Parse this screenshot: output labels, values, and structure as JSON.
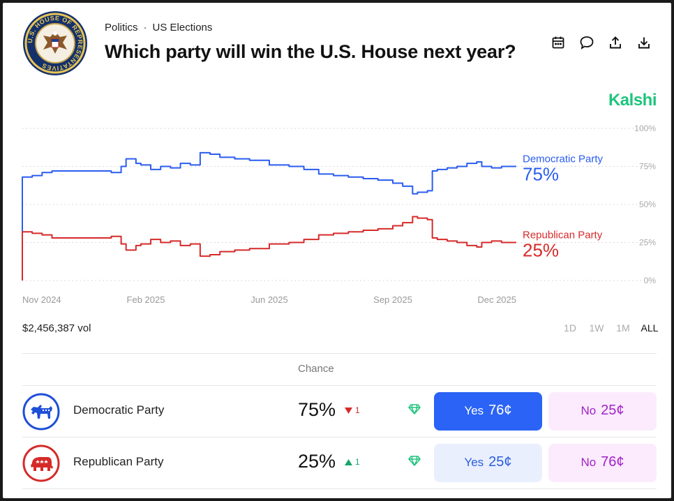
{
  "header": {
    "seal_text": "U.S. HOUSE OF REPRESENTATIVES",
    "breadcrumb": [
      "Politics",
      "US Elections"
    ],
    "title": "Which party will win the U.S. House next year?",
    "brand": "Kalshi"
  },
  "toolbar": [
    {
      "name": "calendar-icon"
    },
    {
      "name": "comment-icon"
    },
    {
      "name": "share-icon"
    },
    {
      "name": "download-icon"
    }
  ],
  "chart_data": {
    "type": "line",
    "x_ticks": [
      "Nov 2024",
      "Feb 2025",
      "Jun 2025",
      "Sep 2025",
      "Dec 2025"
    ],
    "y_ticks": [
      "100%",
      "75%",
      "50%",
      "25%",
      "0%"
    ],
    "ylim": [
      0,
      100
    ],
    "grid": true,
    "series": [
      {
        "name": "Democratic Party",
        "color": "#2a5cf0",
        "label": "75%",
        "t": [
          0,
          0.02,
          0.04,
          0.06,
          0.1,
          0.15,
          0.18,
          0.2,
          0.21,
          0.23,
          0.24,
          0.26,
          0.28,
          0.3,
          0.32,
          0.34,
          0.36,
          0.38,
          0.4,
          0.43,
          0.46,
          0.5,
          0.54,
          0.57,
          0.6,
          0.63,
          0.66,
          0.69,
          0.72,
          0.75,
          0.77,
          0.79,
          0.8,
          0.82,
          0.83,
          0.84,
          0.86,
          0.88,
          0.9,
          0.92,
          0.93,
          0.95,
          0.97,
          1.0
        ],
        "v": [
          68,
          69,
          71,
          72,
          72,
          72,
          71,
          75,
          80,
          77,
          76,
          73,
          75,
          74,
          77,
          76,
          84,
          83,
          81,
          80,
          79,
          76,
          75,
          73,
          70,
          69,
          68,
          67,
          66,
          64,
          62,
          57,
          58,
          59,
          72,
          73,
          74,
          75,
          77,
          78,
          75,
          74,
          75,
          75
        ]
      },
      {
        "name": "Republican Party",
        "color": "#d62a2a",
        "label": "25%",
        "t": [
          0,
          0.02,
          0.04,
          0.06,
          0.1,
          0.15,
          0.18,
          0.2,
          0.21,
          0.23,
          0.24,
          0.26,
          0.28,
          0.3,
          0.32,
          0.34,
          0.36,
          0.38,
          0.4,
          0.43,
          0.46,
          0.5,
          0.54,
          0.57,
          0.6,
          0.63,
          0.66,
          0.69,
          0.72,
          0.75,
          0.77,
          0.79,
          0.8,
          0.82,
          0.83,
          0.84,
          0.86,
          0.88,
          0.9,
          0.92,
          0.93,
          0.95,
          0.97,
          1.0
        ],
        "v": [
          32,
          31,
          30,
          28,
          28,
          28,
          29,
          24,
          20,
          23,
          24,
          27,
          25,
          26,
          23,
          24,
          16,
          17,
          19,
          20,
          21,
          24,
          25,
          27,
          30,
          31,
          32,
          33,
          34,
          36,
          38,
          42,
          41,
          40,
          28,
          27,
          26,
          25,
          23,
          22,
          25,
          26,
          25,
          25
        ]
      }
    ]
  },
  "volume": "$2,456,387 vol",
  "ranges": [
    "1D",
    "1W",
    "1M",
    "ALL"
  ],
  "active_range": "ALL",
  "table": {
    "chance_header": "Chance",
    "rows": [
      {
        "name": "Democratic Party",
        "chance": "75%",
        "delta": "1",
        "delta_dir": "down",
        "yes_label": "Yes",
        "yes_price": "76¢",
        "no_label": "No",
        "no_price": "25¢",
        "color": "#1d4fd8"
      },
      {
        "name": "Republican Party",
        "chance": "25%",
        "delta": "1",
        "delta_dir": "up",
        "yes_label": "Yes",
        "yes_price": "25¢",
        "no_label": "No",
        "no_price": "76¢",
        "color": "#d62a2a"
      }
    ]
  },
  "colors": {
    "up": "#17a56b",
    "down": "#d62a2a",
    "gem": "#1fc47d"
  }
}
